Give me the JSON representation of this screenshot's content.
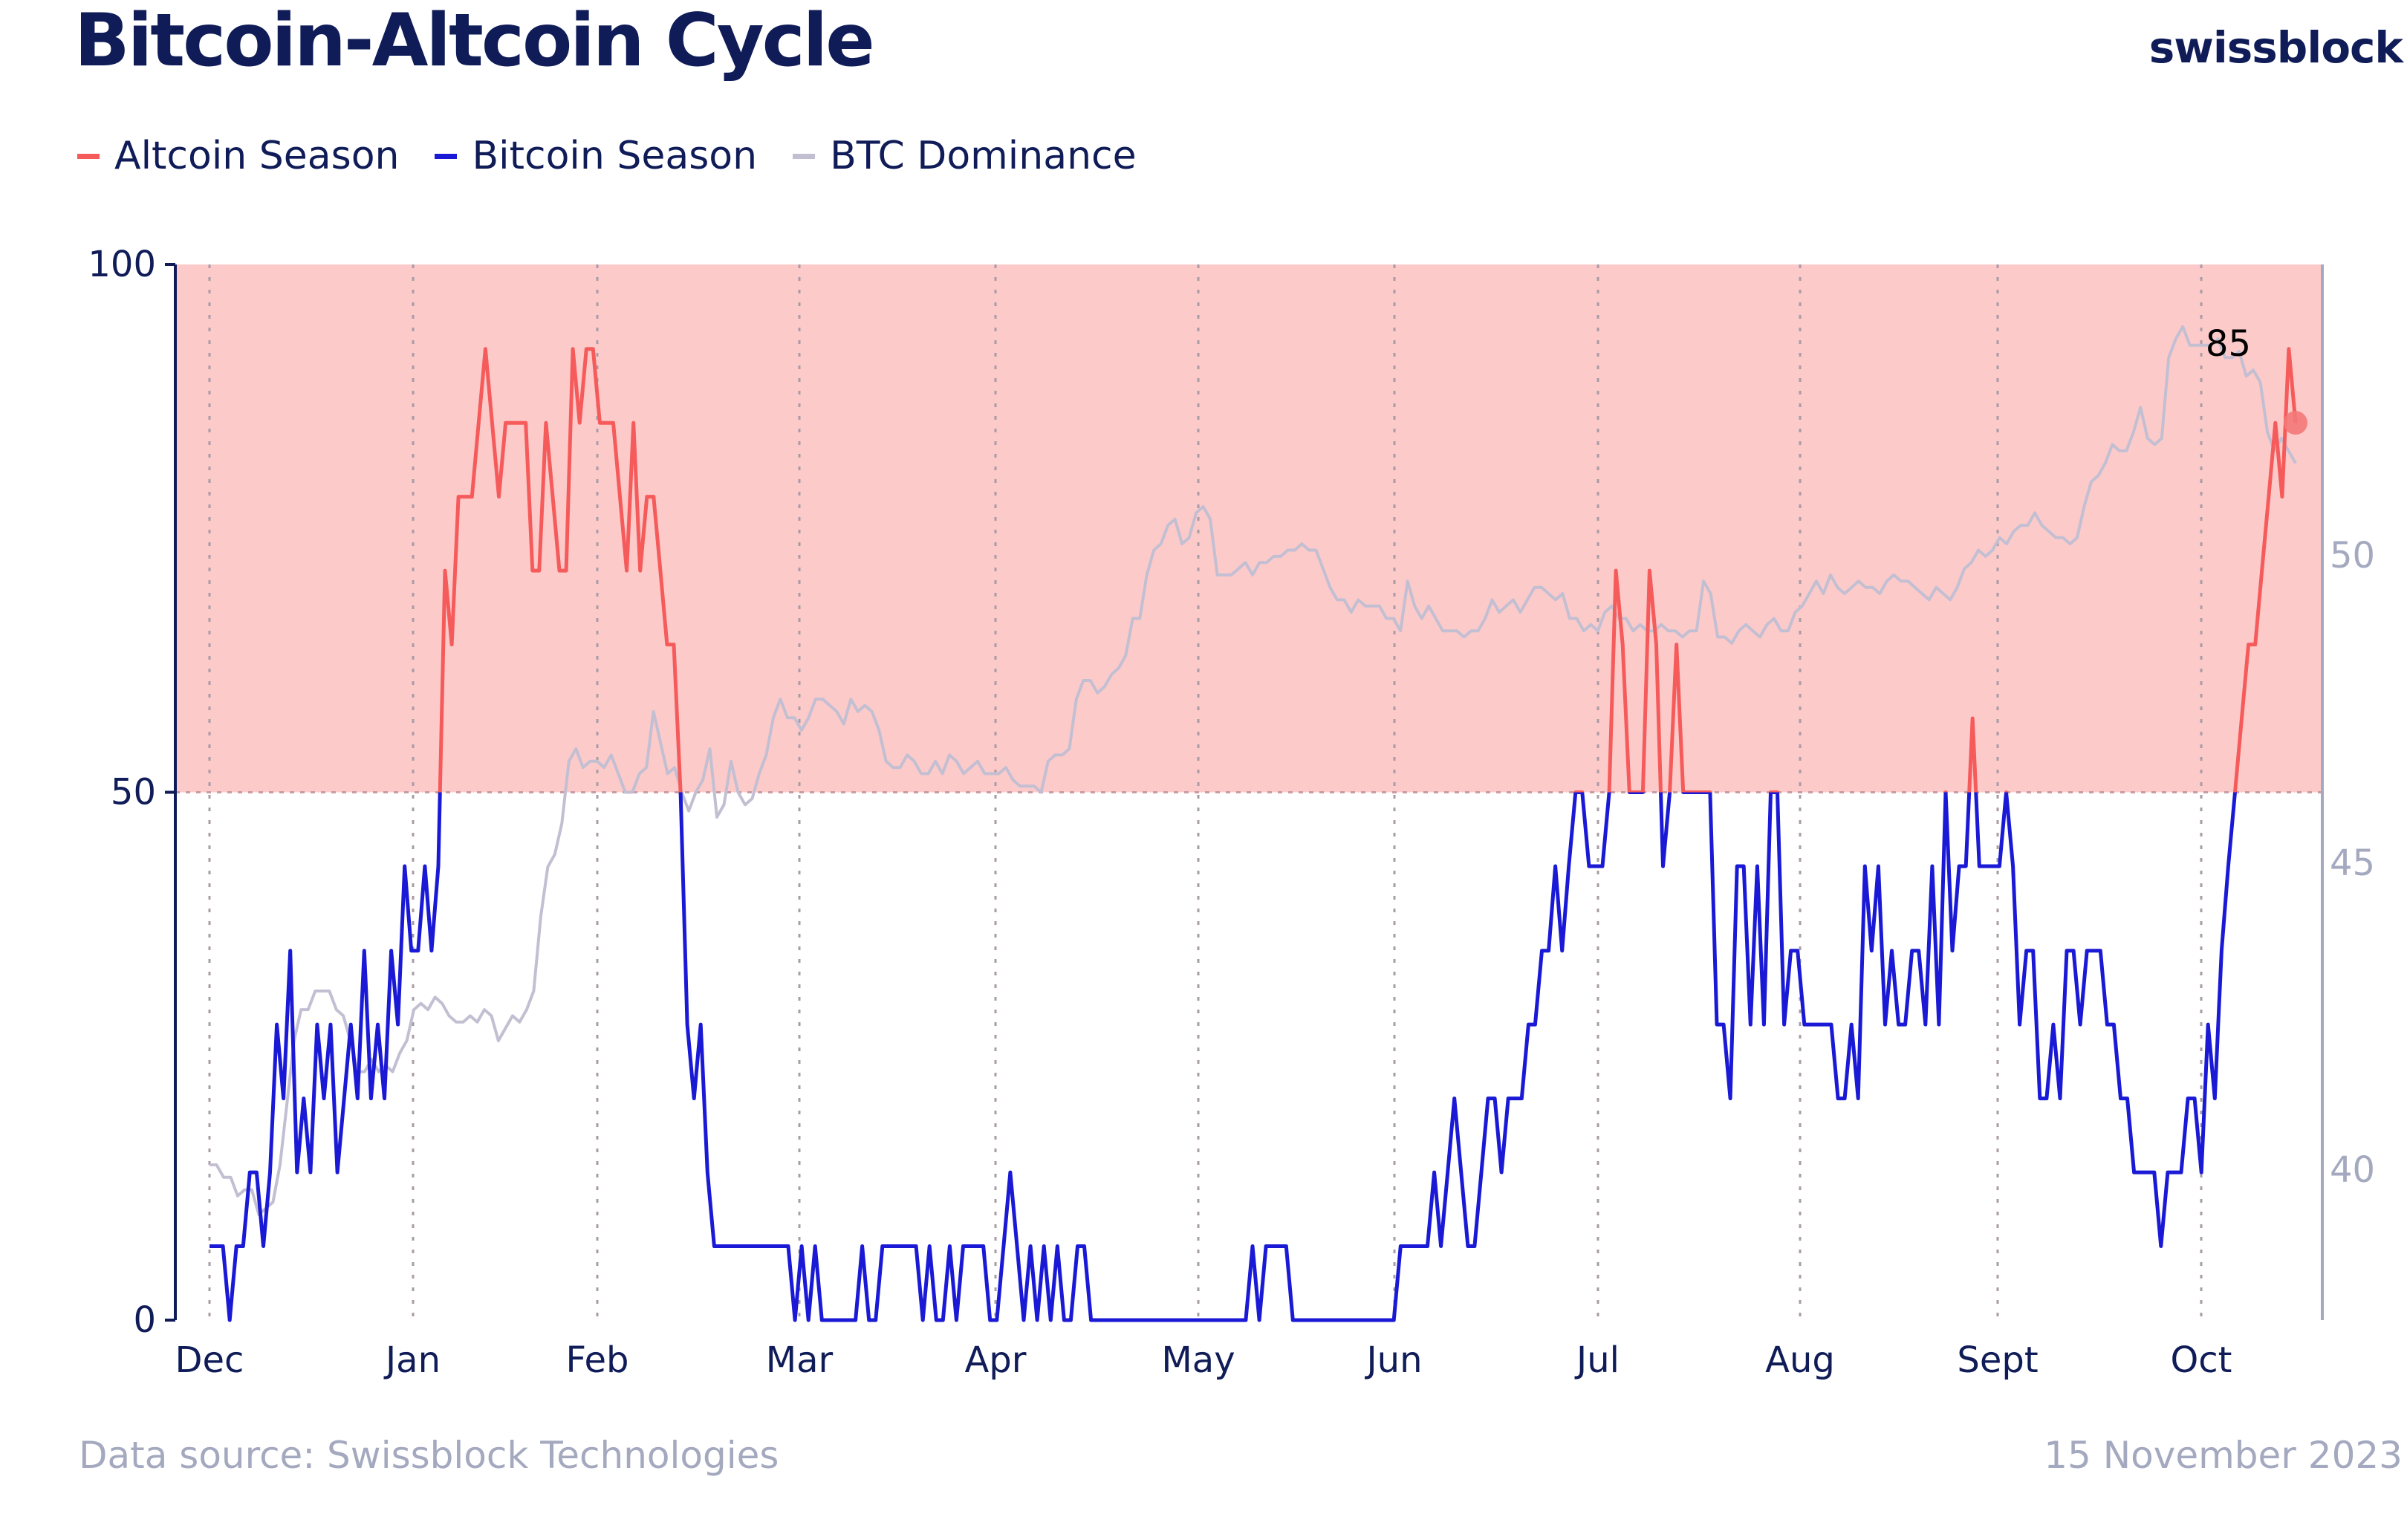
{
  "header": {
    "title": "Bitcoin-Altcoin Cycle",
    "brand": "swissblock"
  },
  "legend": [
    {
      "label": "Altcoin Season",
      "color": "#f65b5b"
    },
    {
      "label": "Bitcoin Season",
      "color": "#1a1ad6"
    },
    {
      "label": "BTC Dominance",
      "color": "#c3bfd2"
    }
  ],
  "footer": {
    "source": "Data source: Swissblock Technologies",
    "date": "15 November 2023"
  },
  "colors": {
    "altcoin": "#f65b5b",
    "bitcoin": "#1a1ad6",
    "dominance": "#c3bfd2",
    "season_fill": "#fdcaca",
    "text": "#101c58",
    "right_axis": "#a4a9bf"
  },
  "chart_data": {
    "type": "line",
    "x_labels": [
      "Dec",
      "Jan",
      "Feb",
      "Mar",
      "Apr",
      "May",
      "Jun",
      "Jul",
      "Aug",
      "Sept",
      "Oct"
    ],
    "y_left": {
      "ticks": [
        "0",
        "50",
        "100"
      ],
      "range": [
        0,
        100
      ]
    },
    "y_right": {
      "ticks": [
        "40",
        "45",
        "50"
      ],
      "range": [
        37.5,
        54.5
      ]
    },
    "threshold": 50,
    "annotation": {
      "label": "85",
      "value": 85
    },
    "series": [
      {
        "name": "Altcoin Season / Bitcoin Season",
        "axis": "left",
        "threshold_split": 50,
        "values": [
          7,
          7,
          7,
          0,
          7,
          7,
          14,
          14,
          7,
          14,
          28,
          21,
          35,
          14,
          21,
          14,
          28,
          21,
          28,
          14,
          21,
          28,
          21,
          35,
          21,
          28,
          21,
          35,
          28,
          43,
          35,
          35,
          43,
          35,
          43,
          71,
          64,
          78,
          78,
          78,
          85,
          92,
          85,
          78,
          85,
          85,
          85,
          85,
          71,
          71,
          85,
          78,
          71,
          71,
          92,
          85,
          92,
          92,
          85,
          85,
          85,
          78,
          71,
          85,
          71,
          78,
          78,
          71,
          64,
          64,
          50,
          28,
          21,
          28,
          14,
          7,
          7,
          7,
          7,
          7,
          7,
          7,
          7,
          7,
          7,
          7,
          7,
          0,
          7,
          0,
          7,
          0,
          0,
          0,
          0,
          0,
          0,
          7,
          0,
          0,
          7,
          7,
          7,
          7,
          7,
          7,
          0,
          7,
          0,
          0,
          7,
          0,
          7,
          7,
          7,
          7,
          0,
          0,
          7,
          14,
          7,
          0,
          7,
          0,
          7,
          0,
          7,
          0,
          0,
          7,
          7,
          0,
          0,
          0,
          0,
          0,
          0,
          0,
          0,
          0,
          0,
          0,
          0,
          0,
          0,
          0,
          0,
          0,
          0,
          0,
          0,
          0,
          0,
          0,
          0,
          7,
          0,
          7,
          7,
          7,
          7,
          0,
          0,
          0,
          0,
          0,
          0,
          0,
          0,
          0,
          0,
          0,
          0,
          0,
          0,
          0,
          0,
          7,
          7,
          7,
          7,
          7,
          14,
          7,
          14,
          21,
          14,
          7,
          7,
          14,
          21,
          21,
          14,
          21,
          21,
          21,
          28,
          28,
          35,
          35,
          43,
          35,
          43,
          50,
          50,
          43,
          43,
          43,
          50,
          71,
          64,
          50,
          50,
          50,
          71,
          64,
          43,
          50,
          64,
          50,
          50,
          50,
          50,
          50,
          28,
          28,
          21,
          43,
          43,
          28,
          43,
          28,
          50,
          50,
          28,
          35,
          35,
          28,
          28,
          28,
          28,
          28,
          21,
          21,
          28,
          21,
          43,
          35,
          43,
          28,
          35,
          28,
          28,
          35,
          35,
          28,
          43,
          28,
          50,
          35,
          43,
          43,
          57,
          43,
          43,
          43,
          43,
          50,
          43,
          28,
          35,
          35,
          21,
          21,
          28,
          21,
          35,
          35,
          28,
          35,
          35,
          35,
          28,
          28,
          21,
          21,
          14,
          14,
          14,
          14,
          7,
          14,
          14,
          14,
          21,
          21,
          14,
          28,
          21,
          35,
          43,
          50,
          57,
          64,
          64,
          71,
          78,
          85,
          78,
          92,
          85
        ]
      },
      {
        "name": "BTC Dominance",
        "axis": "right",
        "values": [
          40,
          40,
          39.8,
          39.8,
          39.5,
          39.6,
          39.6,
          39.2,
          39.3,
          39.4,
          40,
          41,
          42,
          42.5,
          42.5,
          42.8,
          42.8,
          42.8,
          42.5,
          42.4,
          42,
          41.5,
          41.5,
          41.7,
          41.5,
          41.6,
          41.5,
          41.8,
          42,
          42.5,
          42.6,
          42.5,
          42.7,
          42.6,
          42.4,
          42.3,
          42.3,
          42.4,
          42.3,
          42.5,
          42.4,
          42,
          42.2,
          42.4,
          42.3,
          42.5,
          42.8,
          44,
          44.8,
          45,
          45.5,
          46.5,
          46.7,
          46.4,
          46.5,
          46.5,
          46.4,
          46.6,
          46.3,
          46,
          46,
          46.3,
          46.4,
          47.3,
          46.8,
          46.3,
          46.4,
          46,
          45.7,
          46,
          46.2,
          46.7,
          45.6,
          45.8,
          46.5,
          46,
          45.8,
          45.9,
          46.3,
          46.6,
          47.2,
          47.5,
          47.2,
          47.2,
          47,
          47.2,
          47.5,
          47.5,
          47.4,
          47.3,
          47.1,
          47.5,
          47.3,
          47.4,
          47.3,
          47,
          46.5,
          46.4,
          46.4,
          46.6,
          46.5,
          46.3,
          46.3,
          46.5,
          46.3,
          46.6,
          46.5,
          46.3,
          46.4,
          46.5,
          46.3,
          46.3,
          46.3,
          46.4,
          46.2,
          46.1,
          46.1,
          46.1,
          46,
          46.5,
          46.6,
          46.6,
          46.7,
          47.5,
          47.8,
          47.8,
          47.6,
          47.7,
          47.9,
          48,
          48.2,
          48.8,
          48.8,
          49.5,
          49.9,
          50,
          50.3,
          50.4,
          50,
          50.1,
          50.5,
          50.6,
          50.4,
          49.5,
          49.5,
          49.5,
          49.6,
          49.7,
          49.5,
          49.7,
          49.7,
          49.8,
          49.8,
          49.9,
          49.9,
          50,
          49.9,
          49.9,
          49.6,
          49.3,
          49.1,
          49.1,
          48.9,
          49.1,
          49,
          49,
          49,
          48.8,
          48.8,
          48.6,
          49.4,
          49,
          48.8,
          49,
          48.8,
          48.6,
          48.6,
          48.6,
          48.5,
          48.6,
          48.6,
          48.8,
          49.1,
          48.9,
          49,
          49.1,
          48.9,
          49.1,
          49.3,
          49.3,
          49.2,
          49.1,
          49.2,
          48.8,
          48.8,
          48.6,
          48.7,
          48.6,
          48.9,
          49,
          48.8,
          48.8,
          48.6,
          48.7,
          48.6,
          48.6,
          48.7,
          48.6,
          48.6,
          48.5,
          48.6,
          48.6,
          49.4,
          49.2,
          48.5,
          48.5,
          48.4,
          48.6,
          48.7,
          48.6,
          48.5,
          48.7,
          48.8,
          48.6,
          48.6,
          48.9,
          49,
          49.2,
          49.4,
          49.2,
          49.5,
          49.3,
          49.2,
          49.3,
          49.4,
          49.3,
          49.3,
          49.2,
          49.4,
          49.5,
          49.4,
          49.4,
          49.3,
          49.2,
          49.1,
          49.3,
          49.2,
          49.1,
          49.3,
          49.6,
          49.7,
          49.9,
          49.8,
          49.9,
          50.1,
          50,
          50.2,
          50.3,
          50.3,
          50.5,
          50.3,
          50.2,
          50.1,
          50.1,
          50,
          50.1,
          50.6,
          51,
          51.1,
          51.3,
          51.6,
          51.5,
          51.5,
          51.8,
          52.2,
          51.7,
          51.6,
          51.7,
          53,
          53.3,
          53.5,
          53.2,
          53.2,
          53.2,
          53.2,
          53.3,
          53,
          53,
          53.1,
          52.7,
          52.8,
          52.6,
          51.8,
          51.5,
          51.7,
          51.5,
          51.3
        ]
      }
    ]
  }
}
